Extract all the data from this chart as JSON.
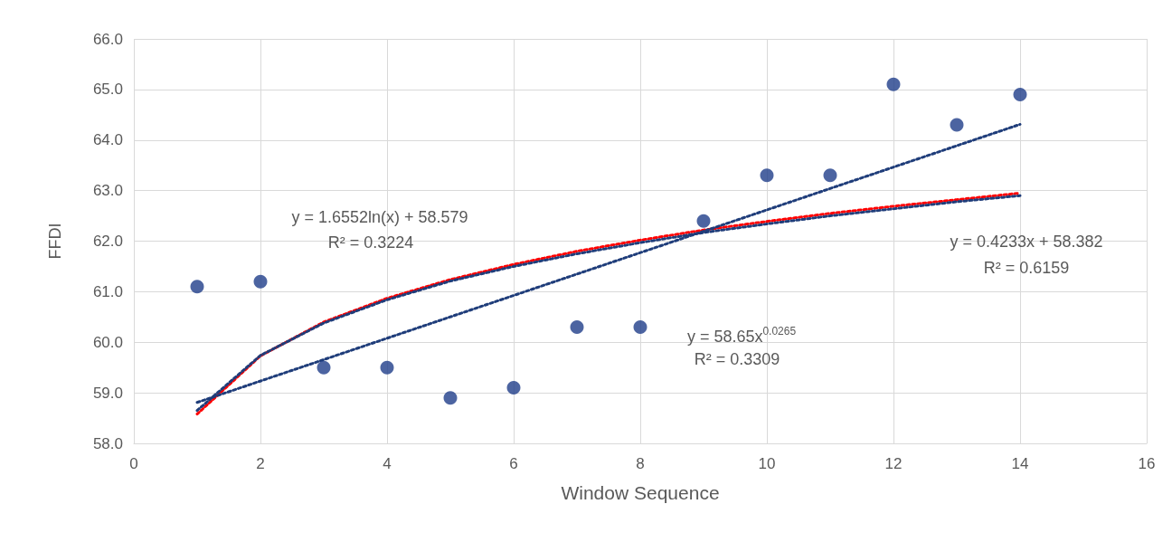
{
  "chart_data": {
    "type": "scatter",
    "xlabel": "Window Sequence",
    "ylabel": "FFDI",
    "grid": true,
    "marker": "circle",
    "xlim": [
      0,
      16
    ],
    "xticks": [
      0,
      2,
      4,
      6,
      8,
      10,
      12,
      14,
      16
    ],
    "ylim": [
      58,
      66
    ],
    "yticks": [
      {
        "value": 58,
        "label": "58.0"
      },
      {
        "value": 59,
        "label": "59.0"
      },
      {
        "value": 60,
        "label": "60.0"
      },
      {
        "value": 61,
        "label": "61.0"
      },
      {
        "value": 62,
        "label": "62.0"
      },
      {
        "value": 63,
        "label": "63.0"
      },
      {
        "value": 64,
        "label": "64.0"
      },
      {
        "value": 65,
        "label": "65.0"
      },
      {
        "value": 66,
        "label": "66.0"
      }
    ],
    "x": [
      1,
      2,
      3,
      4,
      5,
      6,
      7,
      8,
      9,
      10,
      11,
      12,
      13,
      14
    ],
    "series": [
      {
        "color": "#1f3d8a",
        "values": [
          61.1,
          61.2,
          59.5,
          59.5,
          58.9,
          59.1,
          60.3,
          60.3,
          62.4,
          63.3,
          63.3,
          65.1,
          64.3,
          64.9
        ]
      },
      {
        "type": "line",
        "color": "#ff0000",
        "line_style": "dotted",
        "marker": "none",
        "x": [
          1,
          2,
          3,
          4,
          5,
          6,
          7,
          8,
          9,
          10,
          11,
          12,
          13,
          14
        ],
        "values": [
          58.58,
          59.73,
          60.4,
          60.87,
          61.24,
          61.54,
          61.8,
          62.02,
          62.22,
          62.39,
          62.55,
          62.69,
          62.82,
          62.95
        ]
      },
      {
        "type": "line",
        "color": "#1f3d7a",
        "line_style": "dotted",
        "marker": "none",
        "x": [
          1,
          2,
          3,
          4,
          5,
          6,
          7,
          8,
          9,
          10,
          11,
          12,
          13,
          14
        ],
        "values": [
          58.65,
          59.74,
          60.38,
          60.84,
          61.21,
          61.5,
          61.75,
          61.97,
          62.17,
          62.34,
          62.5,
          62.64,
          62.78,
          62.9
        ]
      },
      {
        "type": "line",
        "color": "#1f3d7a",
        "line_style": "dotted",
        "marker": "none",
        "x": [
          1,
          14
        ],
        "values": [
          58.81,
          64.31
        ]
      }
    ],
    "annotations": [
      "y = 1.6552ln(x) + 58.579",
      "R² = 0.3224",
      "y = 58.65x$^{0.0265}$",
      "R² = 0.3309",
      "y = 0.4233x + 58.382",
      "R² = 0.6159"
    ]
  }
}
